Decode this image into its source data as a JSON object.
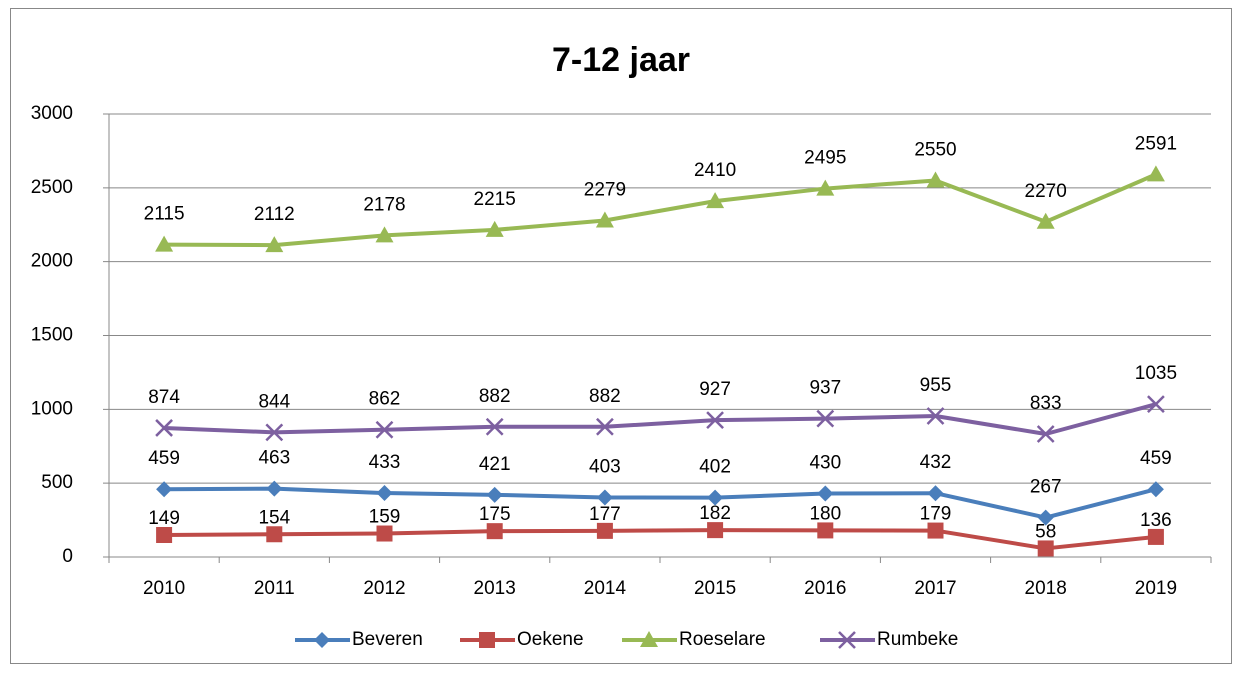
{
  "chart_data": {
    "type": "line",
    "title": "7-12 jaar",
    "categories": [
      "2010",
      "2011",
      "2012",
      "2013",
      "2014",
      "2015",
      "2016",
      "2017",
      "2018",
      "2019"
    ],
    "series": [
      {
        "name": "Beveren",
        "color": "#4a7ebb",
        "marker": "diamond",
        "values": [
          459,
          463,
          433,
          421,
          403,
          402,
          430,
          432,
          267,
          459
        ]
      },
      {
        "name": "Oekene",
        "color": "#be4b48",
        "marker": "square",
        "values": [
          149,
          154,
          159,
          175,
          177,
          182,
          180,
          179,
          58,
          136
        ]
      },
      {
        "name": "Roeselare",
        "color": "#98b954",
        "marker": "triangle",
        "values": [
          2115,
          2112,
          2178,
          2215,
          2279,
          2410,
          2495,
          2550,
          2270,
          2591
        ]
      },
      {
        "name": "Rumbeke",
        "color": "#7d60a0",
        "marker": "x",
        "values": [
          874,
          844,
          862,
          882,
          882,
          927,
          937,
          955,
          833,
          1035
        ]
      }
    ],
    "ylim": [
      0,
      3000
    ],
    "yticks": [
      0,
      500,
      1000,
      1500,
      2000,
      2500,
      3000
    ],
    "grid": true,
    "legend": "bottom"
  }
}
